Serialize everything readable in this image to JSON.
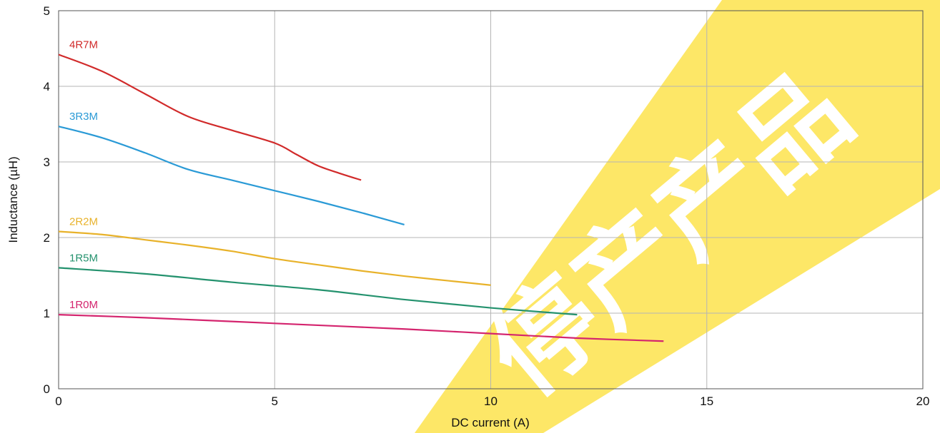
{
  "chart_data": {
    "type": "line",
    "xlabel": "DC current (A)",
    "ylabel": "Inductance (µH)",
    "xlim": [
      0,
      20
    ],
    "ylim": [
      0,
      5
    ],
    "xticks": [
      "0",
      "5",
      "10",
      "15",
      "20"
    ],
    "yticks": [
      "0",
      "1",
      "2",
      "3",
      "4",
      "5"
    ],
    "grid": true,
    "series": [
      {
        "name": "4R7M",
        "color": "#d12a2a",
        "x": [
          0,
          1,
          2,
          3,
          4,
          5,
          5.5,
          6,
          6.5,
          7
        ],
        "y": [
          4.42,
          4.2,
          3.9,
          3.6,
          3.42,
          3.25,
          3.1,
          2.95,
          2.85,
          2.76
        ]
      },
      {
        "name": "3R3M",
        "color": "#2a9ad6",
        "x": [
          0,
          1,
          2,
          3,
          4,
          5,
          6,
          7,
          8
        ],
        "y": [
          3.47,
          3.32,
          3.12,
          2.9,
          2.76,
          2.62,
          2.48,
          2.33,
          2.17
        ]
      },
      {
        "name": "2R2M",
        "color": "#e8b22a",
        "x": [
          0,
          1,
          2,
          3,
          4,
          5,
          6,
          7,
          8,
          9,
          10
        ],
        "y": [
          2.08,
          2.04,
          1.97,
          1.9,
          1.82,
          1.72,
          1.64,
          1.56,
          1.49,
          1.43,
          1.37
        ]
      },
      {
        "name": "1R5M",
        "color": "#24926e",
        "x": [
          0,
          2,
          4,
          6,
          8,
          10,
          12
        ],
        "y": [
          1.6,
          1.52,
          1.41,
          1.31,
          1.18,
          1.07,
          0.98
        ]
      },
      {
        "name": "1R0M",
        "color": "#d4246e",
        "x": [
          0,
          2,
          4,
          6,
          8,
          10,
          12,
          14
        ],
        "y": [
          0.98,
          0.94,
          0.89,
          0.84,
          0.79,
          0.73,
          0.67,
          0.63
        ]
      }
    ]
  },
  "watermark": {
    "text": "停产产品",
    "color": "#fde767"
  }
}
